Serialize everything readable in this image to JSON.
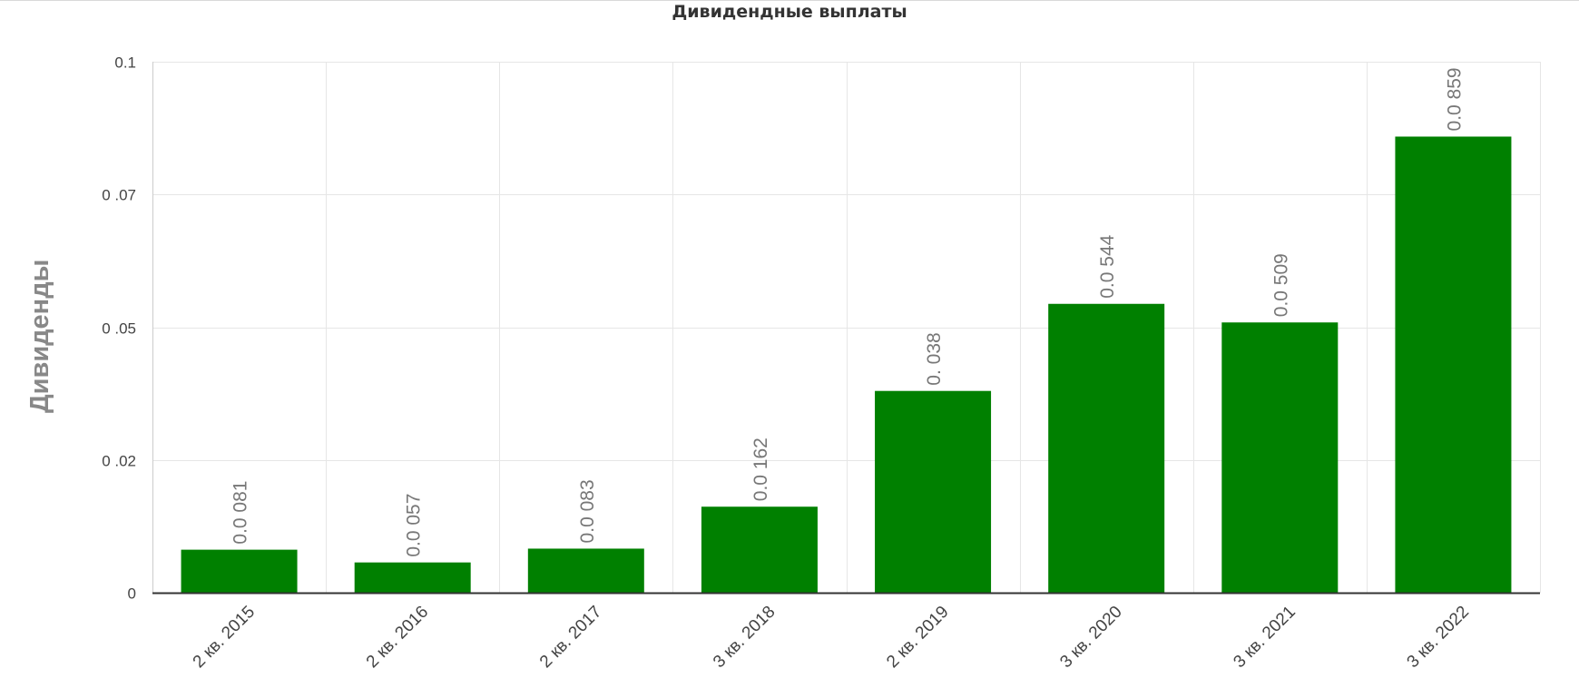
{
  "chart_data": {
    "type": "bar",
    "title": "Дивидендные выплаты",
    "xlabel": "",
    "ylabel": "Дивиденды",
    "categories": [
      "2 кв. 2015",
      "2 кв. 2016",
      "2 кв. 2017",
      "3 кв. 2018",
      "2 кв. 2019",
      "3 кв. 2020",
      "3 кв. 2021",
      "3 кв. 2022"
    ],
    "values": [
      0.0081,
      0.0057,
      0.0083,
      0.0162,
      0.038,
      0.0544,
      0.0509,
      0.0859
    ],
    "data_labels": [
      "0.0 081",
      "0.0 057",
      "0.0 083",
      "0.0 162",
      "0. 038",
      "0.0 544",
      "0.0 509",
      "0.0 859"
    ],
    "yticks": [
      {
        "value": 0,
        "label": "0"
      },
      {
        "value": 0.025,
        "label": "0 .02"
      },
      {
        "value": 0.05,
        "label": "0 .05"
      },
      {
        "value": 0.075,
        "label": "0 .07"
      },
      {
        "value": 0.1,
        "label": "0.1"
      }
    ],
    "ylim": [
      0,
      0.1
    ],
    "grid": true,
    "bar_color": "#008000"
  }
}
